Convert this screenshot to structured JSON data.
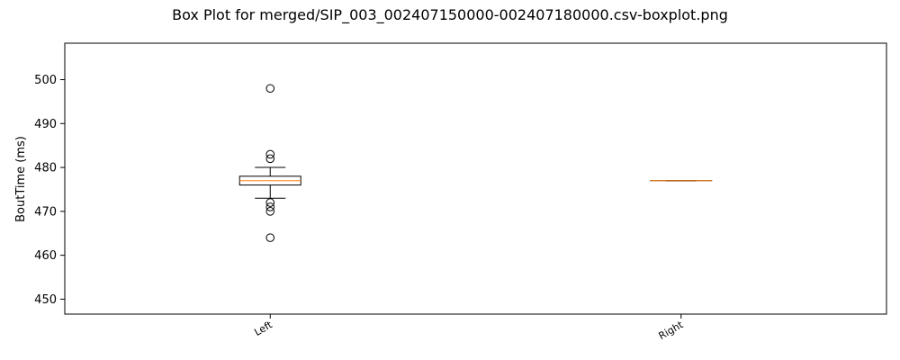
{
  "chart_data": {
    "type": "box",
    "title": "Box Plot for merged/SIP_003_002407150000-002407180000.csv-boxplot.png",
    "xlabel": "",
    "ylabel": "BoutTime (ms)",
    "ylim": [
      446.6,
      508.3
    ],
    "yticks": [
      450,
      460,
      470,
      480,
      490,
      500
    ],
    "categories": [
      "Left",
      "Right"
    ],
    "boxes": [
      {
        "category": "Left",
        "whisker_low": 473,
        "q1": 476,
        "median": 477,
        "q3": 478,
        "whisker_high": 480,
        "outliers": [
          498,
          483,
          482,
          472,
          471,
          470,
          464
        ]
      },
      {
        "category": "Right",
        "whisker_low": 477,
        "q1": 477,
        "median": 477,
        "q3": 477,
        "whisker_high": 477,
        "outliers": []
      }
    ],
    "grid": false,
    "colors": {
      "box": "#000000",
      "median": "#ff7f0e",
      "outlier": "#000000"
    }
  }
}
